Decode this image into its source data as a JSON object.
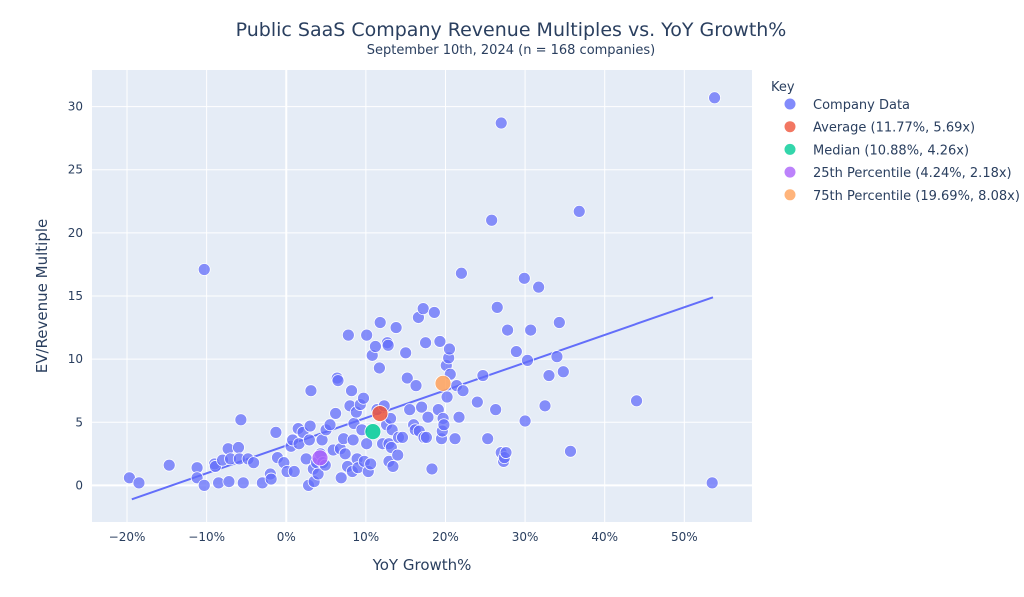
{
  "chart_data": {
    "type": "scatter",
    "title": "Public SaaS Company Revenue Multiples vs. YoY Growth%",
    "subtitle": "September 10th, 2024 (n = 168 companies)",
    "xlabel": "YoY Growth%",
    "ylabel": "EV/Revenue Multiple",
    "xlim": [
      -24.4,
      58.5
    ],
    "ylim": [
      -2.9,
      32.9
    ],
    "x_ticks": [
      -20,
      -10,
      0,
      10,
      20,
      30,
      40,
      50
    ],
    "x_tick_labels": [
      "−20%",
      "−10%",
      "0%",
      "10%",
      "20%",
      "30%",
      "40%",
      "50%"
    ],
    "y_ticks": [
      0,
      5,
      10,
      15,
      20,
      25,
      30
    ],
    "y_tick_labels": [
      "0",
      "5",
      "10",
      "15",
      "20",
      "25",
      "30"
    ],
    "grid": true,
    "legend_title": "Key",
    "legend_position": "right",
    "colors": {
      "company": "#636efa",
      "average": "#ef553b",
      "median": "#00cc96",
      "p25": "#ab63fa",
      "p75": "#ffa15a",
      "trend": "#636efa",
      "plot_bg": "#e5ecf6"
    },
    "series": [
      {
        "name": "Company Data",
        "points": [
          [
            -19.7,
            0.6
          ],
          [
            -18.5,
            0.2
          ],
          [
            -14.7,
            1.6
          ],
          [
            -11.2,
            1.4
          ],
          [
            -11.2,
            0.6
          ],
          [
            -10.3,
            17.1
          ],
          [
            -10.3,
            0
          ],
          [
            -9.0,
            1.7
          ],
          [
            -8.9,
            1.5
          ],
          [
            -8.5,
            0.2
          ],
          [
            -8.0,
            2.0
          ],
          [
            -7.3,
            2.9
          ],
          [
            -7.2,
            0.3
          ],
          [
            -7.0,
            2.1
          ],
          [
            -6.0,
            3.0
          ],
          [
            -5.9,
            2.1
          ],
          [
            -5.7,
            5.2
          ],
          [
            -5.4,
            0.2
          ],
          [
            -4.8,
            2.1
          ],
          [
            -4.1,
            1.8
          ],
          [
            -3.0,
            0.2
          ],
          [
            -2.0,
            0.9
          ],
          [
            -1.9,
            0.5
          ],
          [
            -1.3,
            4.2
          ],
          [
            -1.1,
            2.2
          ],
          [
            -0.3,
            1.8
          ],
          [
            0.1,
            1.1
          ],
          [
            0.6,
            3.1
          ],
          [
            0.8,
            3.6
          ],
          [
            1.0,
            1.1
          ],
          [
            1.5,
            4.5
          ],
          [
            1.6,
            3.3
          ],
          [
            2.1,
            4.2
          ],
          [
            2.5,
            2.1
          ],
          [
            2.8,
            0
          ],
          [
            2.9,
            3.6
          ],
          [
            3.0,
            4.7
          ],
          [
            3.1,
            7.5
          ],
          [
            3.4,
            1.3
          ],
          [
            3.5,
            0.3
          ],
          [
            3.8,
            1.8
          ],
          [
            4.0,
            0.9
          ],
          [
            4.3,
            2.5
          ],
          [
            4.5,
            3.6
          ],
          [
            4.6,
            1.8
          ],
          [
            4.9,
            1.6
          ],
          [
            5.0,
            4.4
          ],
          [
            5.5,
            4.8
          ],
          [
            5.9,
            2.8
          ],
          [
            6.2,
            5.7
          ],
          [
            6.4,
            8.5
          ],
          [
            6.5,
            8.3
          ],
          [
            6.8,
            2.9
          ],
          [
            6.9,
            0.6
          ],
          [
            7.2,
            3.7
          ],
          [
            7.4,
            2.5
          ],
          [
            7.7,
            1.5
          ],
          [
            7.8,
            11.9
          ],
          [
            8.0,
            6.3
          ],
          [
            8.2,
            7.5
          ],
          [
            8.3,
            1.1
          ],
          [
            8.4,
            3.6
          ],
          [
            8.5,
            4.9
          ],
          [
            8.8,
            5.8
          ],
          [
            8.9,
            2.1
          ],
          [
            9.0,
            1.4
          ],
          [
            9.3,
            6.4
          ],
          [
            9.5,
            4.4
          ],
          [
            9.7,
            6.9
          ],
          [
            9.8,
            1.9
          ],
          [
            10.1,
            11.9
          ],
          [
            10.1,
            3.3
          ],
          [
            10.3,
            1.1
          ],
          [
            10.6,
            1.7
          ],
          [
            10.8,
            10.3
          ],
          [
            11.2,
            11.0
          ],
          [
            11.4,
            6.0
          ],
          [
            11.7,
            9.3
          ],
          [
            11.8,
            12.9
          ],
          [
            12.1,
            3.3
          ],
          [
            12.3,
            6.3
          ],
          [
            12.6,
            4.8
          ],
          [
            12.7,
            11.3
          ],
          [
            12.8,
            11.1
          ],
          [
            12.9,
            3.3
          ],
          [
            12.9,
            1.9
          ],
          [
            13.1,
            5.3
          ],
          [
            13.2,
            3.0
          ],
          [
            13.3,
            4.4
          ],
          [
            13.4,
            1.5
          ],
          [
            13.8,
            12.5
          ],
          [
            14.0,
            2.4
          ],
          [
            14.1,
            3.8
          ],
          [
            14.6,
            3.8
          ],
          [
            15.0,
            10.5
          ],
          [
            15.2,
            8.5
          ],
          [
            15.5,
            6.0
          ],
          [
            16.0,
            4.8
          ],
          [
            16.2,
            4.4
          ],
          [
            16.3,
            7.9
          ],
          [
            16.6,
            13.3
          ],
          [
            16.7,
            4.3
          ],
          [
            17.0,
            6.2
          ],
          [
            17.2,
            14.0
          ],
          [
            17.3,
            3.8
          ],
          [
            17.5,
            11.3
          ],
          [
            17.6,
            3.8
          ],
          [
            17.8,
            5.4
          ],
          [
            18.3,
            1.3
          ],
          [
            18.6,
            13.7
          ],
          [
            19.1,
            6.0
          ],
          [
            19.3,
            11.4
          ],
          [
            19.5,
            3.7
          ],
          [
            19.6,
            4.3
          ],
          [
            19.7,
            5.3
          ],
          [
            19.8,
            4.8
          ],
          [
            20.1,
            9.5
          ],
          [
            20.2,
            7.0
          ],
          [
            20.4,
            10.1
          ],
          [
            20.5,
            10.8
          ],
          [
            20.6,
            8.8
          ],
          [
            21.2,
            3.7
          ],
          [
            21.4,
            7.9
          ],
          [
            21.7,
            5.4
          ],
          [
            22.0,
            16.8
          ],
          [
            22.2,
            7.5
          ],
          [
            24.0,
            6.6
          ],
          [
            24.7,
            8.7
          ],
          [
            25.3,
            3.7
          ],
          [
            25.8,
            21.0
          ],
          [
            26.3,
            6.0
          ],
          [
            26.5,
            14.1
          ],
          [
            27.0,
            28.7
          ],
          [
            27.0,
            2.6
          ],
          [
            27.3,
            1.9
          ],
          [
            27.4,
            2.2
          ],
          [
            27.6,
            2.6
          ],
          [
            27.8,
            12.3
          ],
          [
            28.9,
            10.6
          ],
          [
            29.9,
            16.4
          ],
          [
            30.0,
            5.1
          ],
          [
            30.3,
            9.9
          ],
          [
            30.7,
            12.3
          ],
          [
            31.7,
            15.7
          ],
          [
            32.5,
            6.3
          ],
          [
            33.0,
            8.7
          ],
          [
            34.0,
            10.2
          ],
          [
            34.3,
            12.9
          ],
          [
            34.8,
            9.0
          ],
          [
            35.7,
            2.7
          ],
          [
            36.8,
            21.7
          ],
          [
            44.0,
            6.7
          ],
          [
            53.5,
            0.2
          ],
          [
            53.8,
            30.7
          ]
        ]
      },
      {
        "name": "Average (11.77%, 5.69x)",
        "points": [
          [
            11.77,
            5.69
          ]
        ]
      },
      {
        "name": "Median (10.88%, 4.26x)",
        "points": [
          [
            10.88,
            4.26
          ]
        ]
      },
      {
        "name": "25th Percentile (4.24%, 2.18x)",
        "points": [
          [
            4.24,
            2.18
          ]
        ]
      },
      {
        "name": "75th Percentile (19.69%, 8.08x)",
        "points": [
          [
            19.69,
            8.08
          ]
        ]
      }
    ],
    "trendline": [
      [
        -19.4,
        -1.1
      ],
      [
        53.6,
        14.9
      ]
    ]
  }
}
